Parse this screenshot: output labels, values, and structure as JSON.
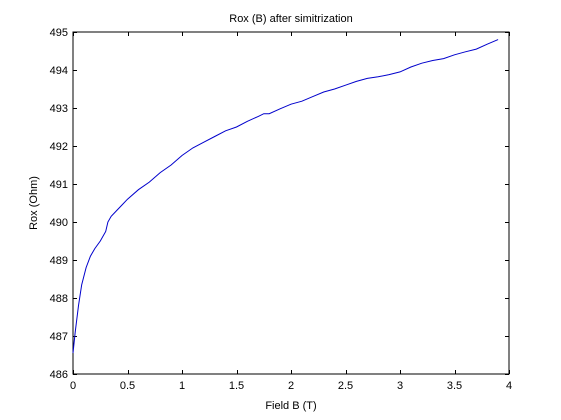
{
  "chart_data": {
    "type": "line",
    "title": "Rox (B) after simitrization",
    "xlabel": "Field B (T)",
    "ylabel": "Rox (Ohm)",
    "xlim": [
      0,
      4
    ],
    "ylim": [
      486,
      495
    ],
    "xticks": [
      0,
      0.5,
      1,
      1.5,
      2,
      2.5,
      3,
      3.5,
      4
    ],
    "xtick_labels": [
      "0",
      "0.5",
      "1",
      "1.5",
      "2",
      "2.5",
      "3",
      "3.5",
      "4"
    ],
    "yticks": [
      486,
      487,
      488,
      489,
      490,
      491,
      492,
      493,
      494,
      495
    ],
    "ytick_labels": [
      "486",
      "487",
      "488",
      "489",
      "490",
      "491",
      "492",
      "493",
      "494",
      "495"
    ],
    "grid": false,
    "series": [
      {
        "color": "#0000cc",
        "x": [
          0.0,
          0.02,
          0.05,
          0.08,
          0.12,
          0.16,
          0.2,
          0.25,
          0.3,
          0.32,
          0.35,
          0.4,
          0.45,
          0.5,
          0.6,
          0.7,
          0.8,
          0.9,
          1.0,
          1.1,
          1.2,
          1.3,
          1.4,
          1.5,
          1.6,
          1.7,
          1.75,
          1.8,
          1.9,
          2.0,
          2.1,
          2.2,
          2.3,
          2.4,
          2.5,
          2.6,
          2.7,
          2.8,
          2.9,
          3.0,
          3.1,
          3.2,
          3.3,
          3.4,
          3.5,
          3.6,
          3.7,
          3.8,
          3.9
        ],
        "y": [
          486.55,
          487.1,
          487.8,
          488.35,
          488.8,
          489.1,
          489.3,
          489.5,
          489.75,
          490.0,
          490.15,
          490.3,
          490.45,
          490.6,
          490.85,
          491.05,
          491.3,
          491.5,
          491.75,
          491.95,
          492.1,
          492.25,
          492.4,
          492.5,
          492.65,
          492.78,
          492.85,
          492.85,
          492.98,
          493.1,
          493.18,
          493.3,
          493.42,
          493.5,
          493.6,
          493.7,
          493.78,
          493.82,
          493.88,
          493.95,
          494.08,
          494.18,
          494.25,
          494.3,
          494.4,
          494.48,
          494.55,
          494.68,
          494.8
        ]
      }
    ]
  }
}
